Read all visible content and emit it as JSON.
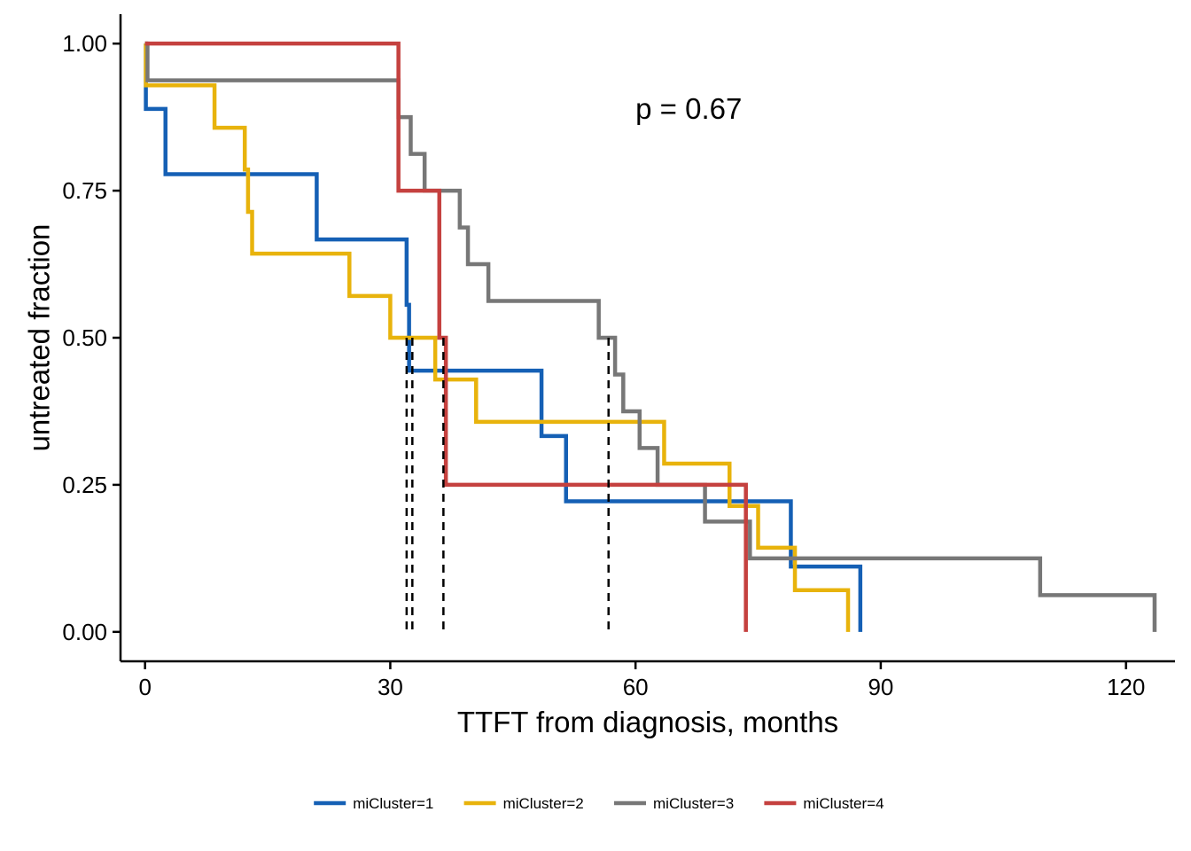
{
  "chart_data": {
    "type": "line",
    "step": true,
    "xlabel": "TTFT from diagnosis, months",
    "ylabel": "untreated fraction",
    "xlim": [
      -3,
      126
    ],
    "ylim": [
      -0.05,
      1.05
    ],
    "xticks": [
      0,
      30,
      60,
      90,
      120
    ],
    "xtick_labels": [
      "0",
      "30",
      "60",
      "90",
      "120"
    ],
    "yticks": [
      0,
      0.25,
      0.5,
      0.75,
      1.0
    ],
    "ytick_labels": [
      "0.00",
      "0.25",
      "0.50",
      "0.75",
      "1.00"
    ],
    "grid": false,
    "legend_position": "bottom",
    "annotation": "p = 0.67",
    "annotation_pos": [
      60,
      0.89
    ],
    "series": [
      {
        "name": "miCluster=1",
        "color": "#1560b5",
        "x": [
          0,
          0.1,
          2.5,
          21,
          32,
          32.3,
          48.5,
          51.5,
          79,
          79.3,
          87.5,
          87.5
        ],
        "y": [
          1.0,
          0.889,
          0.778,
          0.667,
          0.556,
          0.444,
          0.333,
          0.222,
          0.111,
          0.111,
          0.0,
          0.0
        ]
      },
      {
        "name": "miCluster=2",
        "color": "#e8b30c",
        "x": [
          0,
          0.1,
          8.5,
          12.2,
          12.6,
          13.1,
          25,
          30,
          35.5,
          40.5,
          63.5,
          71.5,
          75,
          79.5,
          86,
          86
        ],
        "y": [
          1.0,
          0.929,
          0.857,
          0.786,
          0.714,
          0.643,
          0.571,
          0.5,
          0.429,
          0.357,
          0.286,
          0.214,
          0.143,
          0.071,
          0.0,
          0.0
        ]
      },
      {
        "name": "miCluster=3",
        "color": "#777777",
        "x": [
          0,
          0.3,
          31,
          32.5,
          34.2,
          38.5,
          39.5,
          42,
          55.5,
          57.5,
          58.5,
          60.5,
          62.7,
          68.5,
          74,
          109.5,
          123.5,
          123.5
        ],
        "y": [
          1.0,
          0.9375,
          0.875,
          0.8125,
          0.75,
          0.6875,
          0.625,
          0.5625,
          0.5,
          0.4375,
          0.375,
          0.3125,
          0.25,
          0.1875,
          0.125,
          0.0625,
          0.0,
          0.0
        ]
      },
      {
        "name": "miCluster=4",
        "color": "#c5413f",
        "x": [
          0,
          31,
          36,
          36.8,
          73.5,
          73.5
        ],
        "y": [
          1.0,
          0.75,
          0.5,
          0.25,
          0.0,
          0.0
        ]
      }
    ],
    "median_lines": [
      32,
      32.7,
      36.5,
      56.7
    ]
  }
}
